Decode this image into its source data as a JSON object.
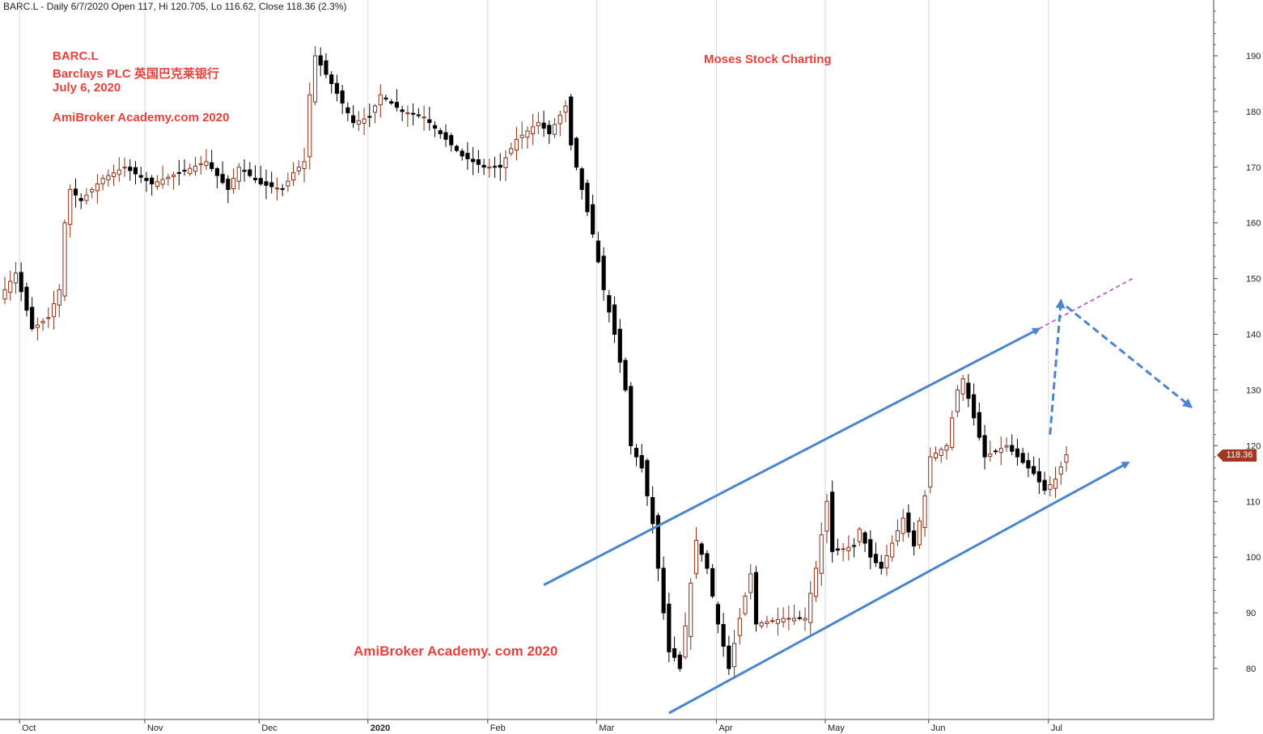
{
  "header": {
    "symbol_line": "BARC.L - Daily 6/7/2020 Open 117, Hi 120.705, Lo 116.62, Close 118.36 (2.3%)"
  },
  "annotations": {
    "ticker": "BARC.L",
    "company": "Barclays PLC 英国巴克莱银行",
    "date": "July 6, 2020",
    "watermark_top": "AmiBroker Academy.com  2020",
    "brand": "Moses Stock Charting",
    "watermark_bottom": "AmiBroker Academy. com  2020"
  },
  "last_price_label": "118.36",
  "colors": {
    "down_candle": "#000000",
    "up_candle": "#8b2e14",
    "trend_lines": "#4a86cf",
    "projection_line": "#b040e0",
    "annotation_text": "#e8413c",
    "price_tag": "#a0371e"
  },
  "chart_data": {
    "type": "candlestick",
    "title": "BARC.L - Daily",
    "y_axis_side": "right",
    "ylim": [
      71,
      198
    ],
    "yticks": [
      80,
      90,
      100,
      110,
      120,
      130,
      140,
      150,
      160,
      170,
      180,
      190
    ],
    "x_labels": [
      "Oct",
      "Nov",
      "Dec",
      "2020",
      "Feb",
      "Mar",
      "Apr",
      "May",
      "Jun",
      "Jul"
    ],
    "grid": "vertical",
    "last_close": 118.36,
    "ohlc_waypoints": [
      [
        "2019-09-26",
        148
      ],
      [
        "2019-09-30",
        151
      ],
      [
        "2019-10-03",
        141
      ],
      [
        "2019-10-08",
        143
      ],
      [
        "2019-10-10",
        148
      ],
      [
        "2019-10-11",
        160
      ],
      [
        "2019-10-14",
        166
      ],
      [
        "2019-10-16",
        164
      ],
      [
        "2019-10-22",
        168
      ],
      [
        "2019-10-28",
        170
      ],
      [
        "2019-11-04",
        167
      ],
      [
        "2019-11-11",
        169
      ],
      [
        "2019-11-18",
        171
      ],
      [
        "2019-11-22",
        166
      ],
      [
        "2019-11-26",
        170
      ],
      [
        "2019-12-02",
        167
      ],
      [
        "2019-12-06",
        166
      ],
      [
        "2019-12-10",
        169
      ],
      [
        "2019-12-12",
        171
      ],
      [
        "2019-12-13",
        183
      ],
      [
        "2019-12-16",
        190
      ],
      [
        "2019-12-19",
        185
      ],
      [
        "2019-12-27",
        178
      ],
      [
        "2020-01-02",
        179
      ],
      [
        "2020-01-06",
        183
      ],
      [
        "2020-01-10",
        180
      ],
      [
        "2020-01-16",
        179
      ],
      [
        "2020-01-22",
        175
      ],
      [
        "2020-01-27",
        172
      ],
      [
        "2020-01-31",
        170
      ],
      [
        "2020-02-05",
        170
      ],
      [
        "2020-02-10",
        175
      ],
      [
        "2020-02-14",
        178
      ],
      [
        "2020-02-18",
        176
      ],
      [
        "2020-02-21",
        181
      ],
      [
        "2020-02-24",
        174
      ],
      [
        "2020-02-26",
        166
      ],
      [
        "2020-02-28",
        158
      ],
      [
        "2020-03-03",
        148
      ],
      [
        "2020-03-05",
        140
      ],
      [
        "2020-03-09",
        130
      ],
      [
        "2020-03-10",
        120
      ],
      [
        "2020-03-12",
        116
      ],
      [
        "2020-03-16",
        106
      ],
      [
        "2020-03-18",
        90
      ],
      [
        "2020-03-19",
        83
      ],
      [
        "2020-03-20",
        82
      ],
      [
        "2020-03-23",
        80
      ],
      [
        "2020-03-26",
        103
      ],
      [
        "2020-03-30",
        98
      ],
      [
        "2020-04-01",
        88
      ],
      [
        "2020-04-03",
        80
      ],
      [
        "2020-04-07",
        89
      ],
      [
        "2020-04-09",
        97
      ],
      [
        "2020-04-14",
        88
      ],
      [
        "2020-04-21",
        89
      ],
      [
        "2020-04-27",
        89
      ],
      [
        "2020-04-29",
        98
      ],
      [
        "2020-05-01",
        110
      ],
      [
        "2020-05-04",
        101
      ],
      [
        "2020-05-08",
        102
      ],
      [
        "2020-05-12",
        105
      ],
      [
        "2020-05-14",
        100
      ],
      [
        "2020-05-18",
        98
      ],
      [
        "2020-05-22",
        107
      ],
      [
        "2020-05-27",
        102
      ],
      [
        "2020-05-29",
        111
      ],
      [
        "2020-06-01",
        118
      ],
      [
        "2020-06-04",
        120
      ],
      [
        "2020-06-08",
        130
      ],
      [
        "2020-06-09",
        132
      ],
      [
        "2020-06-11",
        125
      ],
      [
        "2020-06-15",
        118
      ],
      [
        "2020-06-19",
        120
      ],
      [
        "2020-06-22",
        119
      ],
      [
        "2020-06-26",
        115
      ],
      [
        "2020-06-30",
        112
      ],
      [
        "2020-07-02",
        114
      ],
      [
        "2020-07-06",
        118.36
      ]
    ],
    "trend_lines": [
      {
        "style": "solid",
        "from": [
          "2020-02-17",
          95
        ],
        "to": [
          "2020-06-29",
          141
        ]
      },
      {
        "style": "solid",
        "from": [
          "2020-03-19",
          72
        ],
        "to": [
          "2020-07-22",
          117
        ]
      },
      {
        "style": "dashed",
        "from": [
          "2020-06-29",
          141
        ],
        "to": [
          "2020-07-23",
          150
        ]
      }
    ],
    "projection_arrows": [
      {
        "from": [
          "2020-07-01",
          122
        ],
        "to": [
          "2020-07-03",
          146
        ]
      },
      {
        "from": [
          "2020-07-05",
          145
        ],
        "to": [
          "2020-08-07",
          127
        ]
      }
    ]
  }
}
